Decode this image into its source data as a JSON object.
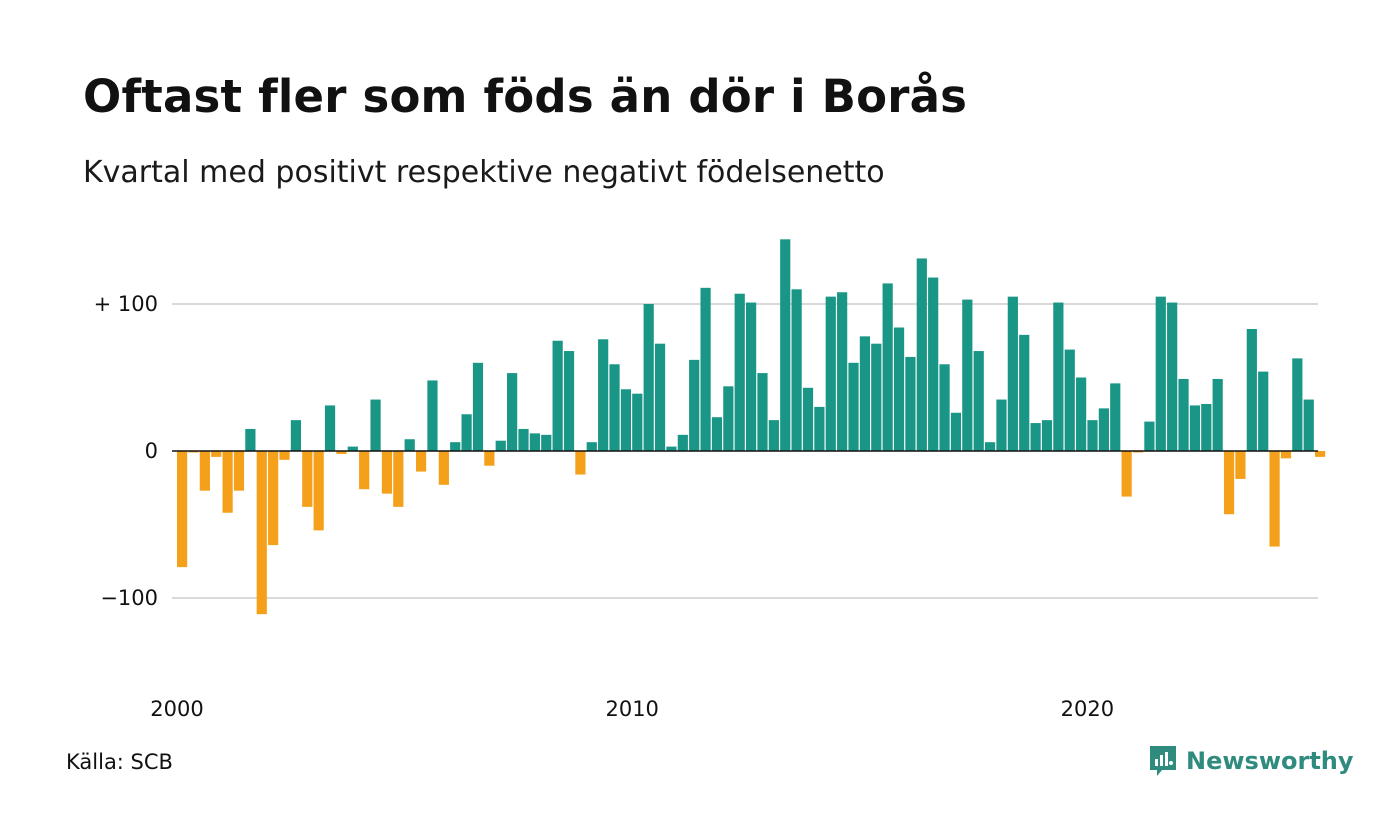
{
  "header": {
    "title": "Oftast fler som föds än dör i Borås",
    "subtitle": "Kvartal med positivt respektive negativt födelsenetto"
  },
  "footer": {
    "source": "Källa: SCB",
    "brand": "Newsworthy"
  },
  "colors": {
    "positive": "#1a9686",
    "negative": "#f5a01a",
    "grid": "#d9d9d9",
    "zero_line": "#111111",
    "brand": "#2e8b7e"
  },
  "icons": {
    "logo": "newsworthy-logo-icon"
  },
  "chart_data": {
    "type": "bar",
    "title": "Oftast fler som föds än dör i Borås",
    "subtitle": "Kvartal med positivt respektive negativt födelsenetto",
    "xlabel": "",
    "ylabel": "",
    "x_start": "2000 Q1",
    "x_ticks": [
      "2000",
      "2010",
      "2020"
    ],
    "y_ticks": [
      {
        "value": 100,
        "label": "+ 100"
      },
      {
        "value": 0,
        "label": "0"
      },
      {
        "value": -100,
        "label": "−100"
      }
    ],
    "ylim": [
      -150,
      150
    ],
    "grid": true,
    "values": [
      -79,
      -1,
      -27,
      -4,
      -42,
      -27,
      15,
      -111,
      -64,
      -6,
      21,
      -38,
      -54,
      31,
      -2,
      3,
      -26,
      35,
      -29,
      -38,
      8,
      -14,
      48,
      -23,
      6,
      25,
      60,
      -10,
      7,
      53,
      15,
      12,
      11,
      75,
      68,
      -16,
      6,
      76,
      59,
      42,
      39,
      100,
      73,
      3,
      11,
      62,
      111,
      23,
      44,
      107,
      101,
      53,
      21,
      144,
      110,
      43,
      30,
      105,
      108,
      60,
      78,
      73,
      114,
      84,
      64,
      131,
      118,
      59,
      26,
      103,
      68,
      6,
      35,
      105,
      79,
      19,
      21,
      101,
      69,
      50,
      21,
      29,
      46,
      -31,
      -1,
      20,
      105,
      101,
      49,
      31,
      32,
      49,
      -43,
      -19,
      83,
      54,
      -65,
      -5,
      63,
      35,
      -4
    ]
  }
}
